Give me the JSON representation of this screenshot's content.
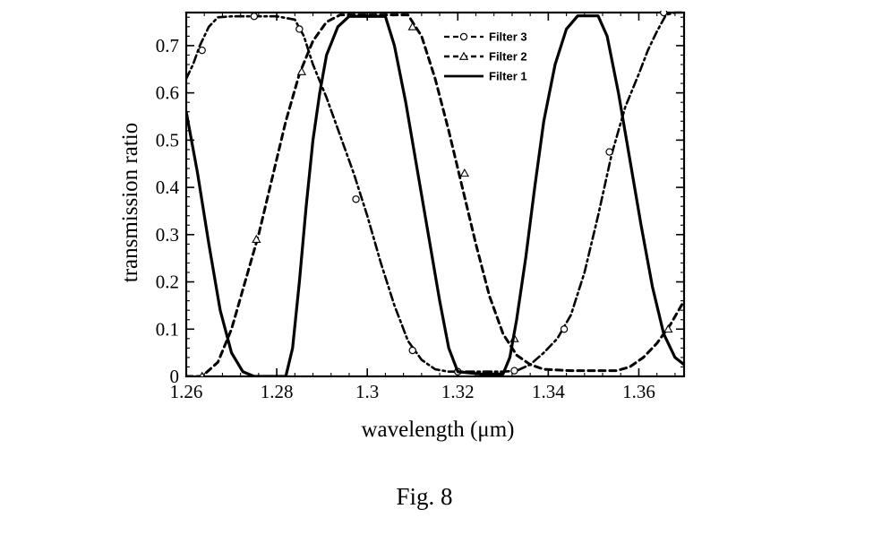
{
  "figure": {
    "caption": "Fig. 8"
  },
  "chart_data": {
    "type": "line",
    "title": "",
    "xlabel": "wavelength (μm)",
    "ylabel": "transmission ratio",
    "xlim": [
      1.26,
      1.37
    ],
    "ylim": [
      0,
      0.77
    ],
    "grid": false,
    "legend_position": "top-right",
    "x_ticks": [
      {
        "value": 1.26,
        "label": "1.26"
      },
      {
        "value": 1.28,
        "label": "1.28"
      },
      {
        "value": 1.3,
        "label": "1.3"
      },
      {
        "value": 1.32,
        "label": "1.32"
      },
      {
        "value": 1.34,
        "label": "1.34"
      },
      {
        "value": 1.36,
        "label": "1.36"
      }
    ],
    "y_ticks": [
      {
        "value": 0,
        "label": "0"
      },
      {
        "value": 0.1,
        "label": "0.1"
      },
      {
        "value": 0.2,
        "label": "0.2"
      },
      {
        "value": 0.3,
        "label": "0.3"
      },
      {
        "value": 0.4,
        "label": "0.4"
      },
      {
        "value": 0.5,
        "label": "0.5"
      },
      {
        "value": 0.6,
        "label": "0.6"
      },
      {
        "value": 0.7,
        "label": "0.7"
      }
    ],
    "series": [
      {
        "name": "Filter 3",
        "line_style": "dash-dot",
        "marker": "circle",
        "color": "#000000",
        "x": [
          1.26,
          1.2615,
          1.263,
          1.265,
          1.267,
          1.27,
          1.275,
          1.28,
          1.284,
          1.286,
          1.288,
          1.291,
          1.294,
          1.297,
          1.3,
          1.303,
          1.306,
          1.309,
          1.312,
          1.315,
          1.318,
          1.32,
          1.325,
          1.33,
          1.333,
          1.336,
          1.339,
          1.342,
          1.345,
          1.348,
          1.351,
          1.354,
          1.357,
          1.36,
          1.362,
          1.364,
          1.366,
          1.368,
          1.37
        ],
        "y": [
          0.63,
          0.66,
          0.7,
          0.74,
          0.76,
          0.762,
          0.762,
          0.762,
          0.755,
          0.72,
          0.66,
          0.59,
          0.51,
          0.43,
          0.34,
          0.24,
          0.15,
          0.075,
          0.035,
          0.015,
          0.01,
          0.01,
          0.01,
          0.01,
          0.012,
          0.025,
          0.05,
          0.08,
          0.13,
          0.22,
          0.34,
          0.47,
          0.57,
          0.64,
          0.69,
          0.73,
          0.765,
          0.77,
          0.77
        ],
        "marker_x": [
          1.2635,
          1.275,
          1.285,
          1.2975,
          1.31,
          1.32,
          1.3325,
          1.3435,
          1.3535,
          1.3655
        ],
        "marker_y": [
          0.69,
          0.762,
          0.735,
          0.375,
          0.055,
          0.01,
          0.012,
          0.1,
          0.475,
          0.77
        ]
      },
      {
        "name": "Filter 2",
        "line_style": "dashed",
        "marker": "triangle",
        "color": "#000000",
        "x": [
          1.26,
          1.2635,
          1.267,
          1.27,
          1.273,
          1.276,
          1.279,
          1.282,
          1.285,
          1.288,
          1.291,
          1.294,
          1.3,
          1.305,
          1.309,
          1.312,
          1.315,
          1.318,
          1.321,
          1.324,
          1.327,
          1.33,
          1.333,
          1.336,
          1.339,
          1.345,
          1.35,
          1.355,
          1.358,
          1.361,
          1.364,
          1.367,
          1.37
        ],
        "y": [
          0.0,
          0.0,
          0.03,
          0.1,
          0.2,
          0.3,
          0.42,
          0.54,
          0.64,
          0.71,
          0.75,
          0.765,
          0.765,
          0.765,
          0.765,
          0.72,
          0.63,
          0.52,
          0.4,
          0.28,
          0.17,
          0.09,
          0.045,
          0.025,
          0.015,
          0.012,
          0.012,
          0.012,
          0.02,
          0.04,
          0.07,
          0.11,
          0.16
        ],
        "marker_x": [
          1.2635,
          1.2755,
          1.2855,
          1.31,
          1.3215,
          1.3325,
          1.3665
        ],
        "marker_y": [
          0.0,
          0.29,
          0.645,
          0.74,
          0.43,
          0.08,
          0.1
        ]
      },
      {
        "name": "Filter 1",
        "line_style": "solid",
        "marker": "none",
        "color": "#000000",
        "x": [
          1.26,
          1.2625,
          1.265,
          1.2675,
          1.27,
          1.2725,
          1.275,
          1.28,
          1.282,
          1.2835,
          1.285,
          1.2865,
          1.288,
          1.2895,
          1.291,
          1.2935,
          1.296,
          1.304,
          1.306,
          1.3085,
          1.311,
          1.3135,
          1.316,
          1.318,
          1.32,
          1.325,
          1.328,
          1.33,
          1.3315,
          1.333,
          1.335,
          1.337,
          1.339,
          1.3415,
          1.344,
          1.3465,
          1.351,
          1.353,
          1.3555,
          1.358,
          1.3605,
          1.363,
          1.3655,
          1.368,
          1.37
        ],
        "y": [
          0.56,
          0.43,
          0.28,
          0.14,
          0.05,
          0.01,
          0.0,
          0.0,
          0.0,
          0.06,
          0.2,
          0.36,
          0.5,
          0.6,
          0.68,
          0.74,
          0.762,
          0.762,
          0.7,
          0.58,
          0.44,
          0.3,
          0.16,
          0.06,
          0.01,
          0.005,
          0.005,
          0.005,
          0.04,
          0.12,
          0.25,
          0.4,
          0.54,
          0.66,
          0.735,
          0.763,
          0.763,
          0.72,
          0.6,
          0.46,
          0.32,
          0.19,
          0.09,
          0.04,
          0.025
        ],
        "marker_x": [],
        "marker_y": []
      }
    ]
  }
}
